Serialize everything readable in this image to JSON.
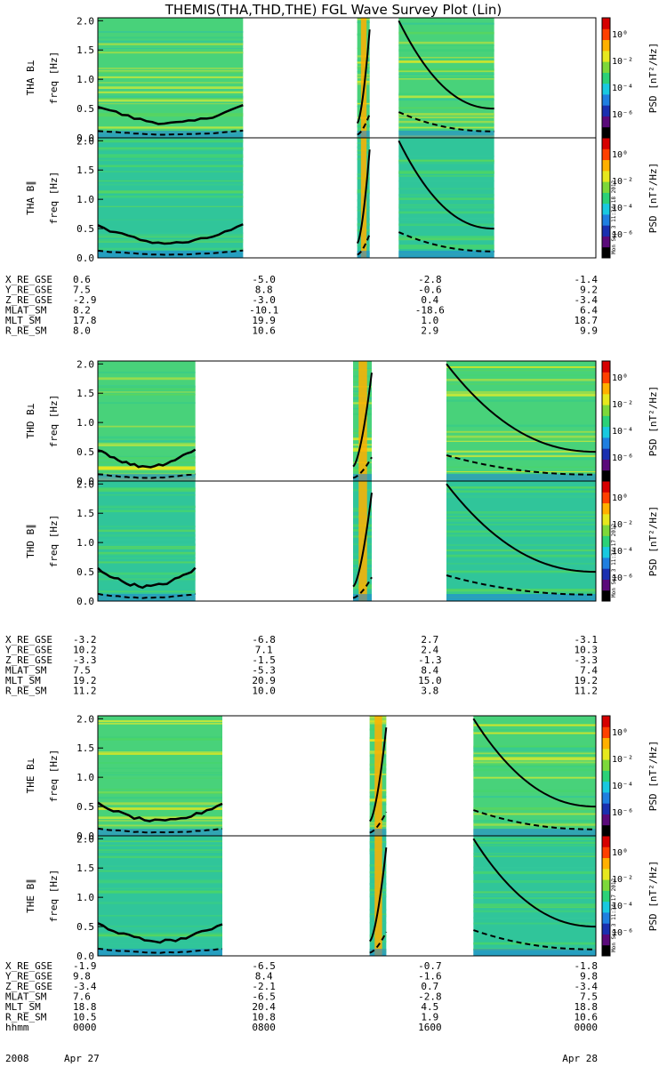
{
  "title": "THEMIS(THA,THD,THE) FGL Wave Survey Plot (Lin)",
  "colorbar": {
    "label": "PSD [nT²/Hz]",
    "ticks": [
      "10⁰",
      "10⁻²",
      "10⁻⁴",
      "10⁻⁶"
    ],
    "colors": [
      "#000000",
      "#5a0a7a",
      "#1a30b0",
      "#1f7fe0",
      "#19c9e0",
      "#2bd178",
      "#7dd83a",
      "#e6e81e",
      "#ffb000",
      "#ff4000",
      "#d60000"
    ]
  },
  "stamps": [
    "Mon Sep  3 11:34:18 2012",
    "Mon Sep  3 11:34:17 2012",
    "Mon Sep  3 11:34:17 2012"
  ],
  "chart_data": [
    {
      "type": "heatmap",
      "spacecraft": "THA",
      "panels": [
        {
          "ylabel": "THA B⊥",
          "yunit": "freq [Hz]"
        },
        {
          "ylabel": "THA B∥",
          "yunit": "freq [Hz]"
        }
      ],
      "ylim": [
        0,
        2.05
      ],
      "yticks": [
        "0.0",
        "0.5",
        "1.0",
        "1.5",
        "2.0"
      ],
      "xlim": [
        0,
        24
      ],
      "data_gaps": [
        [
          7.0,
          12.5
        ],
        [
          13.1,
          14.5
        ],
        [
          19.1,
          24
        ]
      ],
      "data_segments": [
        [
          0,
          7.0
        ],
        [
          12.5,
          13.1
        ],
        [
          14.5,
          19.1
        ]
      ],
      "ephemeris": {
        "X_RE_GSE": [
          "0.6",
          "-5.0",
          "-2.8",
          "-1.4"
        ],
        "Y_RE_GSE": [
          "7.5",
          "8.8",
          "-0.6",
          "9.2"
        ],
        "Z_RE_GSE": [
          "-2.9",
          "-3.0",
          "0.4",
          "-3.4"
        ],
        "MLAT_SM": [
          "8.2",
          "-10.1",
          "-18.6",
          "6.4"
        ],
        "MLT_SM": [
          "17.8",
          "19.9",
          "1.0",
          "18.7"
        ],
        "R_RE_SM": [
          "8.0",
          "10.6",
          "2.9",
          "9.9"
        ]
      }
    },
    {
      "type": "heatmap",
      "spacecraft": "THD",
      "panels": [
        {
          "ylabel": "THD B⊥",
          "yunit": "freq [Hz]"
        },
        {
          "ylabel": "THD B∥",
          "yunit": "freq [Hz]"
        }
      ],
      "ylim": [
        0,
        2.05
      ],
      "yticks": [
        "0.0",
        "0.5",
        "1.0",
        "1.5",
        "2.0"
      ],
      "xlim": [
        0,
        24
      ],
      "data_segments": [
        [
          0,
          4.7
        ],
        [
          12.3,
          13.2
        ],
        [
          16.8,
          24
        ]
      ],
      "ephemeris": {
        "X_RE_GSE": [
          "-3.2",
          "-6.8",
          "2.7",
          "-3.1"
        ],
        "Y_RE_GSE": [
          "10.2",
          "7.1",
          "2.4",
          "10.3"
        ],
        "Z_RE_GSE": [
          "-3.3",
          "-1.5",
          "-1.3",
          "-3.3"
        ],
        "MLAT_SM": [
          "7.5",
          "-5.3",
          "8.4",
          "7.4"
        ],
        "MLT_SM": [
          "19.2",
          "20.9",
          "15.0",
          "19.2"
        ],
        "R_RE_SM": [
          "11.2",
          "10.0",
          "3.8",
          "11.2"
        ]
      }
    },
    {
      "type": "heatmap",
      "spacecraft": "THE",
      "panels": [
        {
          "ylabel": "THE B⊥",
          "yunit": "freq [Hz]"
        },
        {
          "ylabel": "THE B∥",
          "yunit": "freq [Hz]"
        }
      ],
      "ylim": [
        0,
        2.05
      ],
      "yticks": [
        "0.0",
        "0.5",
        "1.0",
        "1.5",
        "2.0"
      ],
      "xlim": [
        0,
        24
      ],
      "data_segments": [
        [
          0,
          6.0
        ],
        [
          13.1,
          13.9
        ],
        [
          18.1,
          24
        ]
      ],
      "ephemeris": {
        "X_RE_GSE": [
          "-1.9",
          "-6.5",
          "-0.7",
          "-1.8"
        ],
        "Y_RE_GSE": [
          "9.8",
          "8.4",
          "-1.6",
          "9.8"
        ],
        "Z_RE_GSE": [
          "-3.4",
          "-2.1",
          "0.7",
          "-3.4"
        ],
        "MLAT_SM": [
          "7.6",
          "-6.5",
          "-2.8",
          "7.5"
        ],
        "MLT_SM": [
          "18.8",
          "20.4",
          "4.5",
          "18.8"
        ],
        "R_RE_SM": [
          "10.5",
          "10.8",
          "1.9",
          "10.6"
        ],
        "hhmm": [
          "0000",
          "0800",
          "1600",
          "0000"
        ]
      }
    }
  ],
  "date": {
    "year": "2008",
    "start": "Apr 27",
    "end": "Apr 28"
  }
}
